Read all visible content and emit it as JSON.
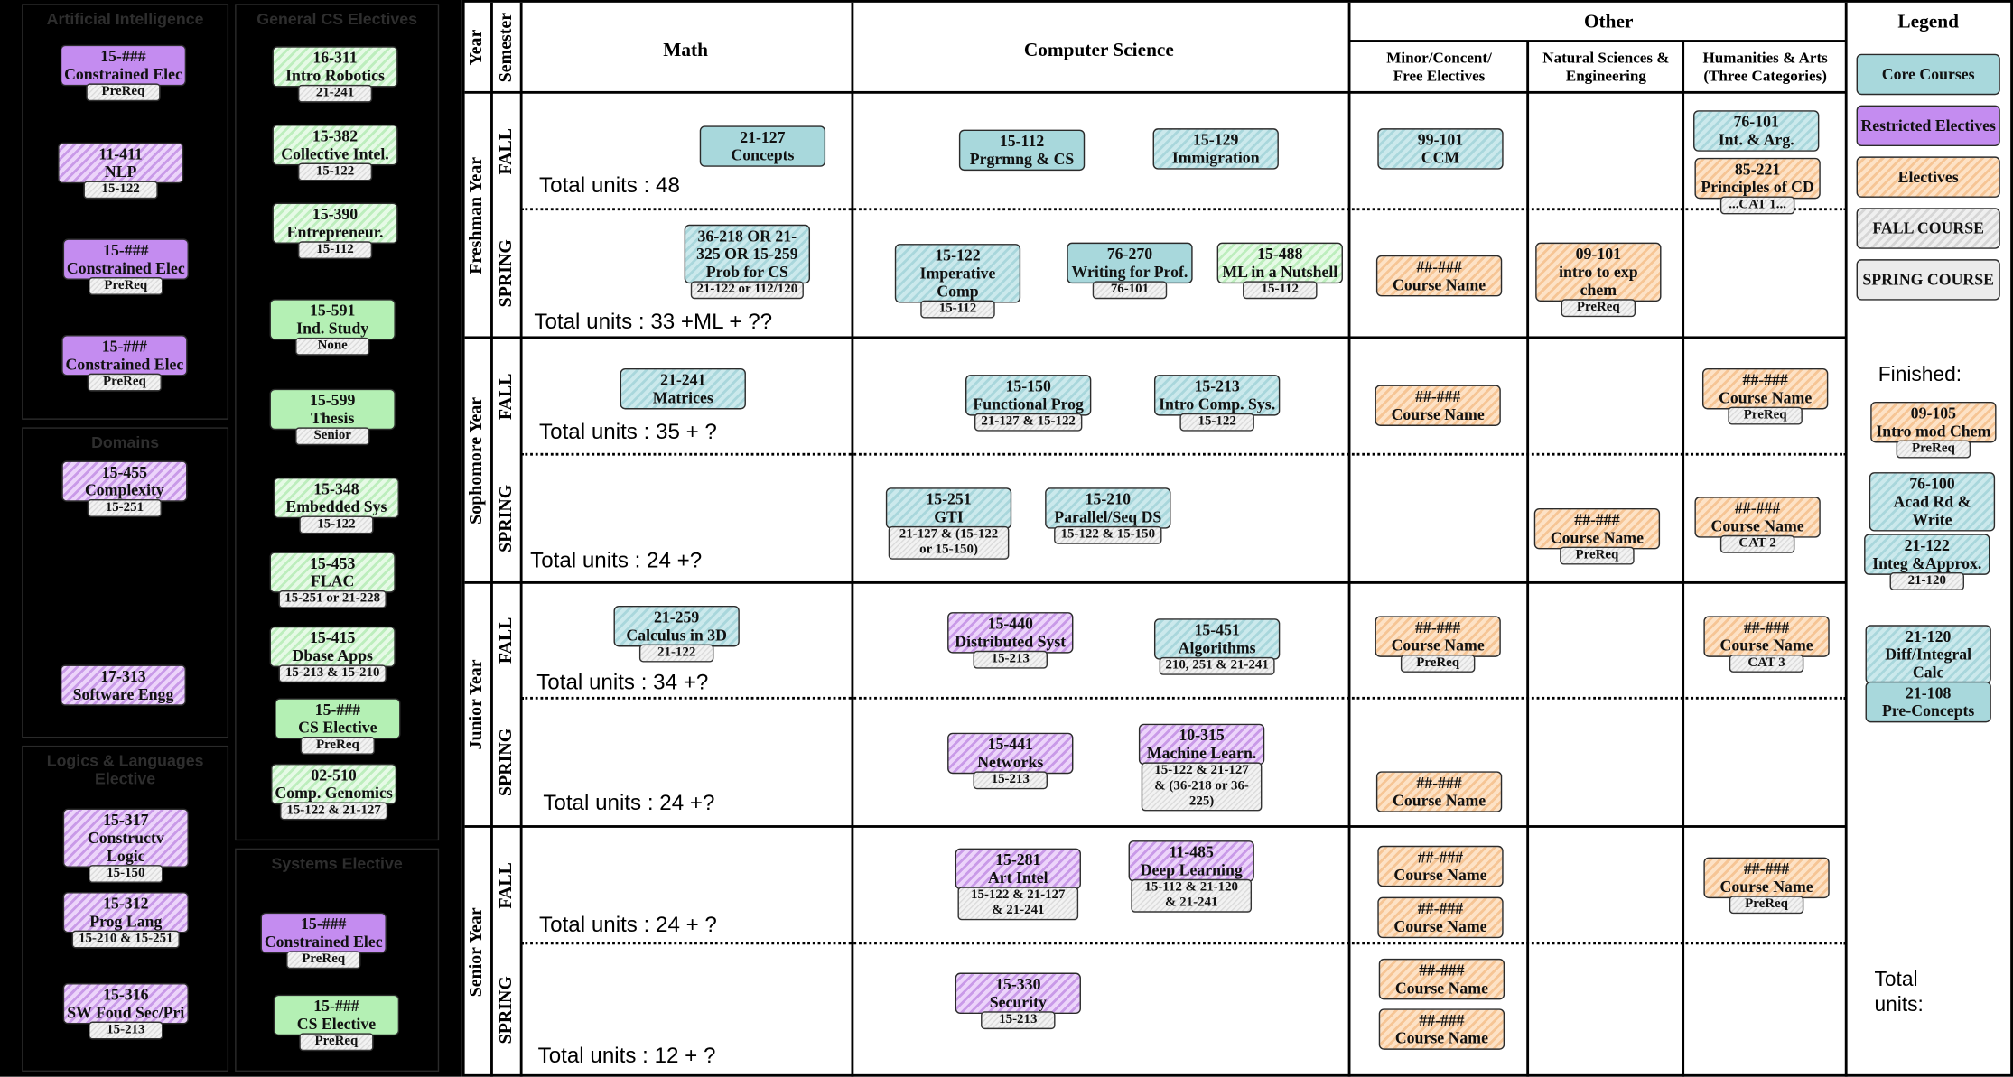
{
  "sidebar": [
    {
      "title": "Artificial Intelligence",
      "courses": [
        {
          "code": "15-###",
          "name": "Constrained Elec",
          "prereq": "PreReq"
        },
        {
          "code": "11-411",
          "name": "NLP",
          "prereq": "15-122"
        },
        {
          "code": "15-###",
          "name": "Constrained Elec",
          "prereq": "PreReq"
        },
        {
          "code": "15-###",
          "name": "Constrained Elec",
          "prereq": "PreReq"
        }
      ]
    },
    {
      "title": "General CS Electives",
      "courses": [
        {
          "code": "16-311",
          "name": "Intro Robotics",
          "prereq": "21-241"
        },
        {
          "code": "15-382",
          "name": "Collective Intel.",
          "prereq": "15-122"
        },
        {
          "code": "15-390",
          "name": "Entrepreneur.",
          "prereq": "15-112"
        },
        {
          "code": "15-591",
          "name": "Ind. Study",
          "prereq": "None"
        },
        {
          "code": "15-599",
          "name": "Thesis",
          "prereq": "Senior"
        },
        {
          "code": "15-348",
          "name": "Embedded Sys",
          "prereq": "15-122"
        },
        {
          "code": "15-453",
          "name": "FLAC",
          "prereq": "15-251 or 21-228"
        },
        {
          "code": "15-415",
          "name": "Dbase Apps",
          "prereq": "15-213 & 15-210"
        },
        {
          "code": "15-###",
          "name": "CS Elective",
          "prereq": "PreReq"
        },
        {
          "code": "02-510",
          "name": "Comp. Genomics",
          "prereq": "15-122 & 21-127"
        }
      ]
    },
    {
      "title": "Domains",
      "courses": [
        {
          "code": "15-455",
          "name": "Complexity",
          "prereq": "15-251"
        },
        {
          "code": "17-313",
          "name": "Software Engg"
        }
      ]
    },
    {
      "title": "Logics & Languages Elective",
      "courses": [
        {
          "code": "15-317",
          "name": "Constructv Logic",
          "prereq": "15-150"
        },
        {
          "code": "15-312",
          "name": "Prog Lang",
          "prereq": "15-210 & 15-251"
        },
        {
          "code": "15-316",
          "name": "SW Foud Sec/Pri",
          "prereq": "15-213"
        }
      ]
    },
    {
      "title": "Systems Elective",
      "courses": [
        {
          "code": "15-###",
          "name": "Constrained Elec",
          "prereq": "PreReq"
        },
        {
          "code": "15-###",
          "name": "CS Elective",
          "prereq": "PreReq"
        }
      ]
    }
  ],
  "table": {
    "headers": {
      "year": "Year",
      "semester": "Semester",
      "math": "Math",
      "cs": "Computer Science",
      "other": "Other",
      "minor": "Minor/Concent/ Free Electives",
      "natsci": "Natural Sciences & Engineering",
      "humanities": "Humanities & Arts (Three Categories)"
    },
    "years": [
      {
        "name": "Freshman Year",
        "semesters": [
          {
            "name": "FALL",
            "total": "Total units : 48",
            "courses": [
              {
                "code": "21-127",
                "name": "Concepts"
              },
              {
                "code": "15-112",
                "name": "Prgrmng & CS"
              },
              {
                "code": "15-129",
                "name": "Immigration"
              },
              {
                "code": "99-101",
                "name": "CCM"
              },
              {
                "code": "76-101",
                "name": "Int. & Arg."
              },
              {
                "code": "85-221",
                "name": "Principles of CD",
                "prereq": "...CAT 1..."
              }
            ]
          },
          {
            "name": "SPRING",
            "total": "Total units : 33 +ML + ??",
            "courses": [
              {
                "code": "36-218 OR 21-325 OR 15-259",
                "name": "Prob for CS",
                "prereq": "21-122 or 112/120"
              },
              {
                "code": "15-122",
                "name": "Imperative Comp",
                "prereq": "15-112"
              },
              {
                "code": "76-270",
                "name": "Writing for Prof.",
                "prereq": "76-101"
              },
              {
                "code": "15-488",
                "name": "ML in a Nutshell",
                "prereq": "15-112"
              },
              {
                "code": "##-###",
                "name": "Course Name"
              },
              {
                "code": "09-101",
                "name": "intro to exp chem",
                "prereq": "PreReq"
              }
            ]
          }
        ]
      },
      {
        "name": "Sophomore Year",
        "semesters": [
          {
            "name": "FALL",
            "total": "Total units : 35 + ?",
            "courses": [
              {
                "code": "21-241",
                "name": "Matrices"
              },
              {
                "code": "15-150",
                "name": "Functional Prog",
                "prereq": "21-127 & 15-122"
              },
              {
                "code": "15-213",
                "name": "Intro Comp. Sys.",
                "prereq": "15-122"
              },
              {
                "code": "##-###",
                "name": "Course Name"
              },
              {
                "code": "##-###",
                "name": "Course Name",
                "prereq": "PreReq"
              }
            ]
          },
          {
            "name": "SPRING",
            "total": "Total units : 24 +?",
            "courses": [
              {
                "code": "15-251",
                "name": "GTI",
                "prereq": "21-127 & (15-122 or 15-150)"
              },
              {
                "code": "15-210",
                "name": "Parallel/Seq DS",
                "prereq": "15-122 & 15-150"
              },
              {
                "code": "##-###",
                "name": "Course Name",
                "prereq": "PreReq"
              },
              {
                "code": "##-###",
                "name": "Course Name",
                "prereq": "CAT 2"
              }
            ]
          }
        ]
      },
      {
        "name": "Junior Year",
        "semesters": [
          {
            "name": "FALL",
            "total": "Total units : 34 +?",
            "courses": [
              {
                "code": "21-259",
                "name": "Calculus in 3D",
                "prereq": "21-122"
              },
              {
                "code": "15-440",
                "name": "Distributed Syst",
                "prereq": "15-213"
              },
              {
                "code": "15-451",
                "name": "Algorithms",
                "prereq": "210, 251 & 21-241"
              },
              {
                "code": "##-###",
                "name": "Course Name",
                "prereq": "PreReq"
              },
              {
                "code": "##-###",
                "name": "Course Name",
                "prereq": "CAT 3"
              }
            ]
          },
          {
            "name": "SPRING",
            "total": "Total units : 24 +?",
            "courses": [
              {
                "code": "15-441",
                "name": "Networks",
                "prereq": "15-213"
              },
              {
                "code": "10-315",
                "name": "Machine Learn.",
                "prereq": "15-122 & 21-127 & (36-218 or 36-225)"
              },
              {
                "code": "##-###",
                "name": "Course Name"
              }
            ]
          }
        ]
      },
      {
        "name": "Senior Year",
        "semesters": [
          {
            "name": "FALL",
            "total": "Total units : 24 + ?",
            "courses": [
              {
                "code": "15-281",
                "name": "Art Intel",
                "prereq": "15-122 & 21-127 & 21-241"
              },
              {
                "code": "11-485",
                "name": "Deep Learning",
                "prereq": "15-112 & 21-120 & 21-241"
              },
              {
                "code": "##-###",
                "name": "Course Name"
              },
              {
                "code": "##-###",
                "name": "Course Name"
              },
              {
                "code": "##-###",
                "name": "Course Name",
                "prereq": "PreReq"
              }
            ]
          },
          {
            "name": "SPRING",
            "total": "Total units : 12 + ?",
            "courses": [
              {
                "code": "15-330",
                "name": "Security",
                "prereq": "15-213"
              },
              {
                "code": "##-###",
                "name": "Course Name"
              },
              {
                "code": "##-###",
                "name": "Course Name"
              }
            ]
          }
        ]
      }
    ]
  },
  "legend": {
    "title": "Legend",
    "items": [
      "Core Courses",
      "Restricted Electives",
      "Electives",
      "FALL COURSE",
      "SPRING COURSE"
    ],
    "finished_title": "Finished:",
    "finished": [
      {
        "code": "09-105",
        "name": "Intro mod Chem",
        "prereq": "PreReq"
      },
      {
        "code": "76-100",
        "name": "Acad Rd & Write"
      },
      {
        "code": "21-122",
        "name": "Integ &Approx.",
        "prereq": "21-120"
      },
      {
        "code": "21-120",
        "name": "Diff/Integral Calc"
      },
      {
        "code": "21-108",
        "name": "Pre-Concepts"
      }
    ],
    "total_label": "Total units:"
  }
}
